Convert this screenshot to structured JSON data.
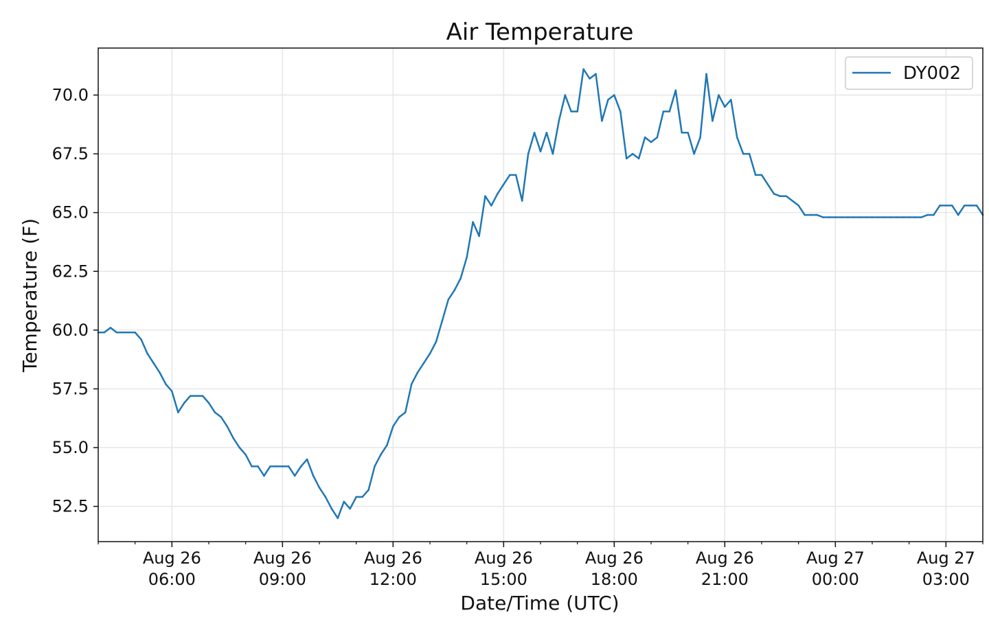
{
  "chart_data": {
    "type": "line",
    "title": "Air Temperature",
    "xlabel": "Date/Time (UTC)",
    "ylabel": "Temperature (F)",
    "ylim": [
      51.0,
      72.0
    ],
    "xlim": [
      "2021-08-26 04:00",
      "2021-08-27 04:00"
    ],
    "grid": true,
    "legend_position": "top-right",
    "y_ticks": [
      "52.5",
      "55.0",
      "57.5",
      "60.0",
      "62.5",
      "65.0",
      "67.5",
      "70.0"
    ],
    "x_ticks": [
      {
        "line1": "Aug 26",
        "line2": "06:00",
        "at": "2021-08-26 06:00"
      },
      {
        "line1": "Aug 26",
        "line2": "09:00",
        "at": "2021-08-26 09:00"
      },
      {
        "line1": "Aug 26",
        "line2": "12:00",
        "at": "2021-08-26 12:00"
      },
      {
        "line1": "Aug 26",
        "line2": "15:00",
        "at": "2021-08-26 15:00"
      },
      {
        "line1": "Aug 26",
        "line2": "18:00",
        "at": "2021-08-26 18:00"
      },
      {
        "line1": "Aug 26",
        "line2": "21:00",
        "at": "2021-08-26 21:00"
      },
      {
        "line1": "Aug 27",
        "line2": "00:00",
        "at": "2021-08-27 00:00"
      },
      {
        "line1": "Aug 27",
        "line2": "03:00",
        "at": "2021-08-27 03:00"
      }
    ],
    "series": [
      {
        "name": "DY002",
        "color": "#1f77b4",
        "points": [
          [
            "2021-08-26 04:00",
            59.9
          ],
          [
            "2021-08-26 04:10",
            59.9
          ],
          [
            "2021-08-26 04:20",
            60.1
          ],
          [
            "2021-08-26 04:30",
            59.9
          ],
          [
            "2021-08-26 04:40",
            59.9
          ],
          [
            "2021-08-26 04:50",
            59.9
          ],
          [
            "2021-08-26 05:00",
            59.9
          ],
          [
            "2021-08-26 05:10",
            59.6
          ],
          [
            "2021-08-26 05:20",
            59.0
          ],
          [
            "2021-08-26 05:30",
            58.6
          ],
          [
            "2021-08-26 05:40",
            58.2
          ],
          [
            "2021-08-26 05:50",
            57.7
          ],
          [
            "2021-08-26 06:00",
            57.4
          ],
          [
            "2021-08-26 06:10",
            56.5
          ],
          [
            "2021-08-26 06:20",
            56.9
          ],
          [
            "2021-08-26 06:30",
            57.2
          ],
          [
            "2021-08-26 06:40",
            57.2
          ],
          [
            "2021-08-26 06:50",
            57.2
          ],
          [
            "2021-08-26 07:00",
            56.9
          ],
          [
            "2021-08-26 07:10",
            56.5
          ],
          [
            "2021-08-26 07:20",
            56.3
          ],
          [
            "2021-08-26 07:30",
            55.9
          ],
          [
            "2021-08-26 07:40",
            55.4
          ],
          [
            "2021-08-26 07:50",
            55.0
          ],
          [
            "2021-08-26 08:00",
            54.7
          ],
          [
            "2021-08-26 08:10",
            54.2
          ],
          [
            "2021-08-26 08:20",
            54.2
          ],
          [
            "2021-08-26 08:30",
            53.8
          ],
          [
            "2021-08-26 08:40",
            54.2
          ],
          [
            "2021-08-26 08:50",
            54.2
          ],
          [
            "2021-08-26 09:00",
            54.2
          ],
          [
            "2021-08-26 09:10",
            54.2
          ],
          [
            "2021-08-26 09:20",
            53.8
          ],
          [
            "2021-08-26 09:30",
            54.2
          ],
          [
            "2021-08-26 09:40",
            54.5
          ],
          [
            "2021-08-26 09:50",
            53.8
          ],
          [
            "2021-08-26 10:00",
            53.3
          ],
          [
            "2021-08-26 10:10",
            52.9
          ],
          [
            "2021-08-26 10:20",
            52.4
          ],
          [
            "2021-08-26 10:30",
            52.0
          ],
          [
            "2021-08-26 10:40",
            52.7
          ],
          [
            "2021-08-26 10:50",
            52.4
          ],
          [
            "2021-08-26 11:00",
            52.9
          ],
          [
            "2021-08-26 11:10",
            52.9
          ],
          [
            "2021-08-26 11:20",
            53.2
          ],
          [
            "2021-08-26 11:30",
            54.2
          ],
          [
            "2021-08-26 11:40",
            54.7
          ],
          [
            "2021-08-26 11:50",
            55.1
          ],
          [
            "2021-08-26 12:00",
            55.9
          ],
          [
            "2021-08-26 12:10",
            56.3
          ],
          [
            "2021-08-26 12:20",
            56.5
          ],
          [
            "2021-08-26 12:30",
            57.7
          ],
          [
            "2021-08-26 12:40",
            58.2
          ],
          [
            "2021-08-26 12:50",
            58.6
          ],
          [
            "2021-08-26 13:00",
            59.0
          ],
          [
            "2021-08-26 13:10",
            59.5
          ],
          [
            "2021-08-26 13:20",
            60.4
          ],
          [
            "2021-08-26 13:30",
            61.3
          ],
          [
            "2021-08-26 13:40",
            61.7
          ],
          [
            "2021-08-26 13:50",
            62.2
          ],
          [
            "2021-08-26 14:00",
            63.1
          ],
          [
            "2021-08-26 14:10",
            64.6
          ],
          [
            "2021-08-26 14:20",
            64.0
          ],
          [
            "2021-08-26 14:30",
            65.7
          ],
          [
            "2021-08-26 14:40",
            65.3
          ],
          [
            "2021-08-26 14:50",
            65.8
          ],
          [
            "2021-08-26 15:00",
            66.2
          ],
          [
            "2021-08-26 15:10",
            66.6
          ],
          [
            "2021-08-26 15:20",
            66.6
          ],
          [
            "2021-08-26 15:30",
            65.5
          ],
          [
            "2021-08-26 15:40",
            67.5
          ],
          [
            "2021-08-26 15:50",
            68.4
          ],
          [
            "2021-08-26 16:00",
            67.6
          ],
          [
            "2021-08-26 16:10",
            68.4
          ],
          [
            "2021-08-26 16:20",
            67.5
          ],
          [
            "2021-08-26 16:30",
            68.9
          ],
          [
            "2021-08-26 16:40",
            70.0
          ],
          [
            "2021-08-26 16:50",
            69.3
          ],
          [
            "2021-08-26 17:00",
            69.3
          ],
          [
            "2021-08-26 17:10",
            71.1
          ],
          [
            "2021-08-26 17:20",
            70.7
          ],
          [
            "2021-08-26 17:30",
            70.9
          ],
          [
            "2021-08-26 17:40",
            68.9
          ],
          [
            "2021-08-26 17:50",
            69.8
          ],
          [
            "2021-08-26 18:00",
            70.0
          ],
          [
            "2021-08-26 18:10",
            69.3
          ],
          [
            "2021-08-26 18:20",
            67.3
          ],
          [
            "2021-08-26 18:30",
            67.5
          ],
          [
            "2021-08-26 18:40",
            67.3
          ],
          [
            "2021-08-26 18:50",
            68.2
          ],
          [
            "2021-08-26 19:00",
            68.0
          ],
          [
            "2021-08-26 19:10",
            68.2
          ],
          [
            "2021-08-26 19:20",
            69.3
          ],
          [
            "2021-08-26 19:30",
            69.3
          ],
          [
            "2021-08-26 19:40",
            70.2
          ],
          [
            "2021-08-26 19:50",
            68.4
          ],
          [
            "2021-08-26 20:00",
            68.4
          ],
          [
            "2021-08-26 20:10",
            67.5
          ],
          [
            "2021-08-26 20:20",
            68.2
          ],
          [
            "2021-08-26 20:30",
            70.9
          ],
          [
            "2021-08-26 20:40",
            68.9
          ],
          [
            "2021-08-26 20:50",
            70.0
          ],
          [
            "2021-08-26 21:00",
            69.5
          ],
          [
            "2021-08-26 21:10",
            69.8
          ],
          [
            "2021-08-26 21:20",
            68.2
          ],
          [
            "2021-08-26 21:30",
            67.5
          ],
          [
            "2021-08-26 21:40",
            67.5
          ],
          [
            "2021-08-26 21:50",
            66.6
          ],
          [
            "2021-08-26 22:00",
            66.6
          ],
          [
            "2021-08-26 22:10",
            66.2
          ],
          [
            "2021-08-26 22:20",
            65.8
          ],
          [
            "2021-08-26 22:30",
            65.7
          ],
          [
            "2021-08-26 22:40",
            65.7
          ],
          [
            "2021-08-26 22:50",
            65.5
          ],
          [
            "2021-08-26 23:00",
            65.3
          ],
          [
            "2021-08-26 23:10",
            64.9
          ],
          [
            "2021-08-26 23:20",
            64.9
          ],
          [
            "2021-08-26 23:30",
            64.9
          ],
          [
            "2021-08-26 23:40",
            64.8
          ],
          [
            "2021-08-26 23:50",
            64.8
          ],
          [
            "2021-08-27 00:00",
            64.8
          ],
          [
            "2021-08-27 00:10",
            64.8
          ],
          [
            "2021-08-27 00:20",
            64.8
          ],
          [
            "2021-08-27 00:30",
            64.8
          ],
          [
            "2021-08-27 00:40",
            64.8
          ],
          [
            "2021-08-27 00:50",
            64.8
          ],
          [
            "2021-08-27 01:00",
            64.8
          ],
          [
            "2021-08-27 01:10",
            64.8
          ],
          [
            "2021-08-27 01:20",
            64.8
          ],
          [
            "2021-08-27 01:30",
            64.8
          ],
          [
            "2021-08-27 01:40",
            64.8
          ],
          [
            "2021-08-27 01:50",
            64.8
          ],
          [
            "2021-08-27 02:00",
            64.8
          ],
          [
            "2021-08-27 02:10",
            64.8
          ],
          [
            "2021-08-27 02:20",
            64.8
          ],
          [
            "2021-08-27 02:30",
            64.9
          ],
          [
            "2021-08-27 02:40",
            64.9
          ],
          [
            "2021-08-27 02:50",
            65.3
          ],
          [
            "2021-08-27 03:00",
            65.3
          ],
          [
            "2021-08-27 03:10",
            65.3
          ],
          [
            "2021-08-27 03:20",
            64.9
          ],
          [
            "2021-08-27 03:30",
            65.3
          ],
          [
            "2021-08-27 03:40",
            65.3
          ],
          [
            "2021-08-27 03:50",
            65.3
          ],
          [
            "2021-08-27 04:00",
            64.9
          ]
        ]
      }
    ]
  }
}
